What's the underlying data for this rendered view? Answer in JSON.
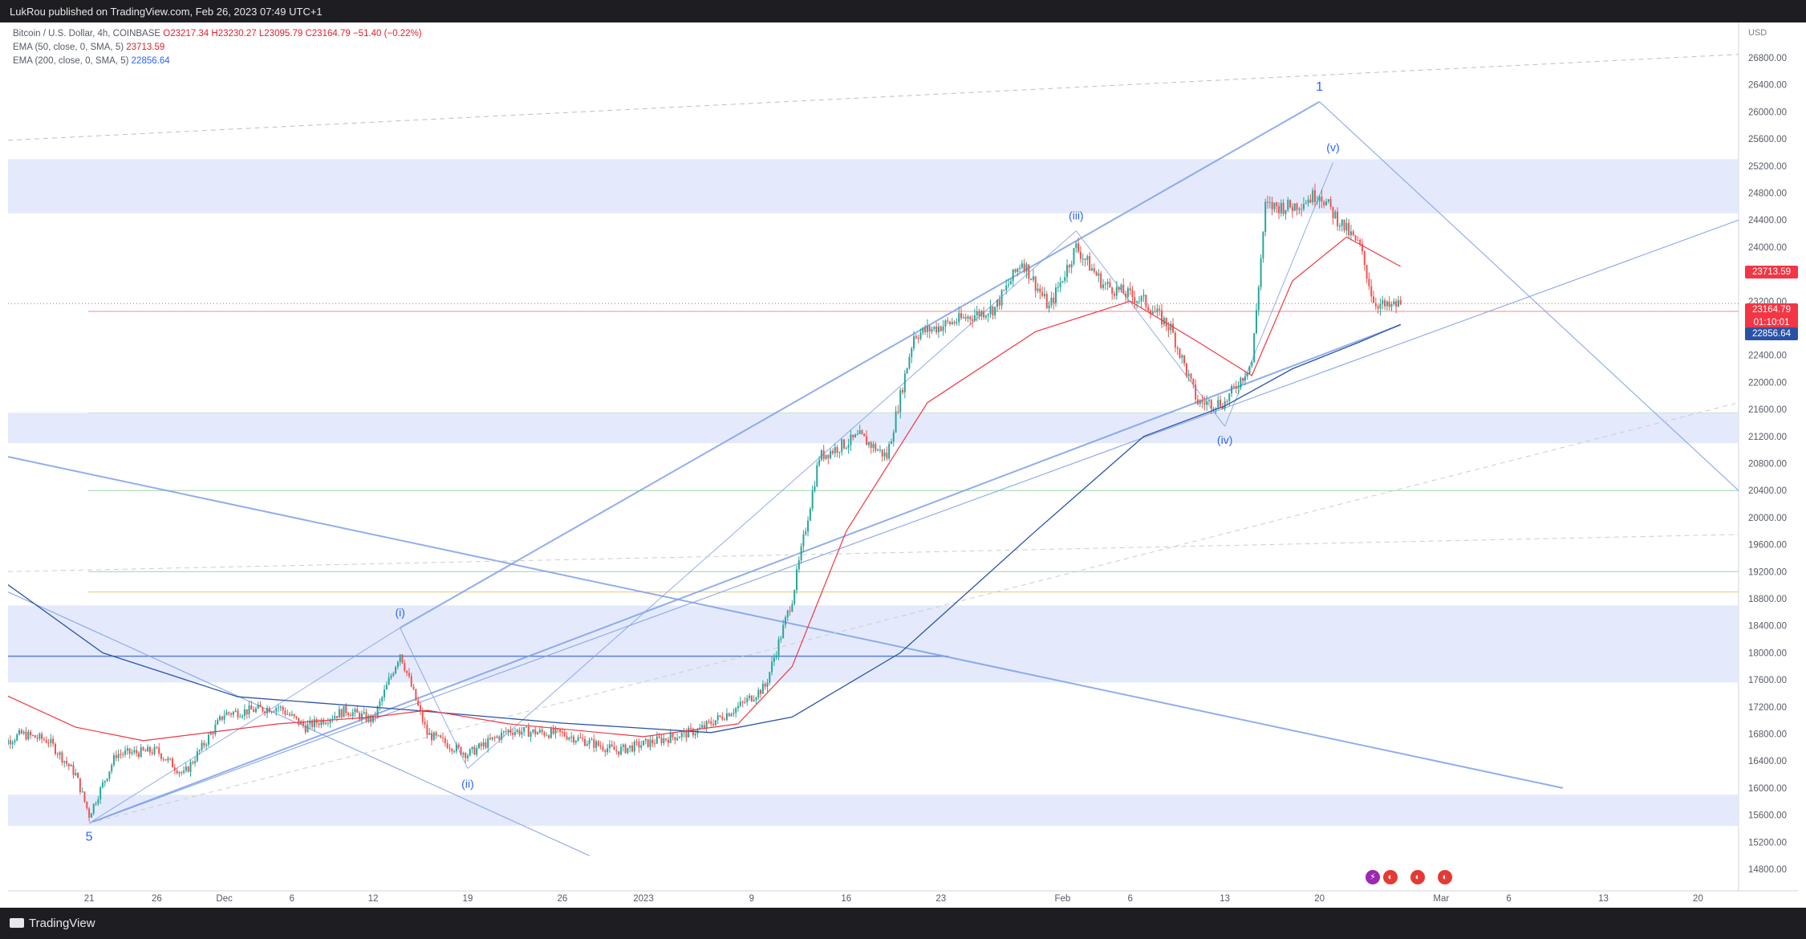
{
  "header": {
    "published_by": "LukRou published on TradingView.com, Feb 26, 2023 07:49 UTC+1"
  },
  "legend": {
    "symbol": "Bitcoin / U.S. Dollar, 4h, COINBASE",
    "open": "O23217.34",
    "high": "H23230.27",
    "low": "L23095.79",
    "close": "C23164.79",
    "change": "−51.40 (−0.22%)",
    "ema50_label": "EMA (50, close, 0, SMA, 5)",
    "ema50_value": "23713.59",
    "ema200_label": "EMA (200, close, 0, SMA, 5)",
    "ema200_value": "22856.64"
  },
  "axis": {
    "currency": "USD",
    "y_ticks": [
      "26800.00",
      "26400.00",
      "26000.00",
      "25600.00",
      "25200.00",
      "24800.00",
      "24400.00",
      "24000.00",
      "23600.00",
      "23200.00",
      "22800.00",
      "22400.00",
      "22000.00",
      "21600.00",
      "21200.00",
      "20800.00",
      "20400.00",
      "20000.00",
      "19600.00",
      "19200.00",
      "18800.00",
      "18400.00",
      "18000.00",
      "17600.00",
      "17200.00",
      "16800.00",
      "16400.00",
      "16000.00",
      "15600.00",
      "15200.00",
      "14800.00"
    ],
    "x_ticks": [
      "21",
      "26",
      "Dec",
      "6",
      "12",
      "19",
      "26",
      "2023",
      "9",
      "16",
      "23",
      "Feb",
      "6",
      "13",
      "20",
      "Mar",
      "6",
      "13",
      "20"
    ]
  },
  "price_tags": {
    "ema50": "23713.59",
    "last": "23164.79",
    "countdown": "01:10:01",
    "ema200": "22856.64"
  },
  "wave_labels": [
    "5",
    "(i)",
    "(ii)",
    "(iii)",
    "(iv)",
    "1",
    "(v)"
  ],
  "footer": {
    "brand": "TradingView"
  },
  "colors": {
    "up": "#26a69a",
    "down": "#ef5350",
    "ema50": "#f23645",
    "ema200": "#2a53a8",
    "zone": "#dfe6fb",
    "trendline": "#7f9fe8",
    "wave_label": "#2962ff"
  },
  "chart_data": {
    "type": "candlestick",
    "title": "Bitcoin / U.S. Dollar, 4h, COINBASE",
    "ylim": [
      14800,
      26800
    ],
    "xlim": [
      "2022-11-15",
      "2023-03-23"
    ],
    "support_resistance_zones": [
      [
        15440,
        15900
      ],
      [
        21100,
        21550
      ],
      [
        17560,
        18700
      ],
      [
        24500,
        25300
      ]
    ],
    "horizontal_levels": [
      17950,
      18900,
      19200,
      20400,
      21550,
      23050
    ],
    "wave_points": [
      {
        "label": "5",
        "date": "2022-11-21",
        "price": 15480
      },
      {
        "label": "(i)",
        "date": "2022-12-14",
        "price": 18370
      },
      {
        "label": "(ii)",
        "date": "2022-12-19",
        "price": 16290
      },
      {
        "label": "(iii)",
        "date": "2023-02-02",
        "price": 24240
      },
      {
        "label": "(iv)",
        "date": "2023-02-13",
        "price": 21350
      },
      {
        "label": "1",
        "date": "2023-02-20",
        "price": 26150
      },
      {
        "label": "(v)",
        "date": "2023-02-21",
        "price": 25250
      }
    ],
    "price_path": [
      {
        "date": "2022-11-14",
        "price": 16600
      },
      {
        "date": "2022-11-16",
        "price": 16800
      },
      {
        "date": "2022-11-18",
        "price": 16700
      },
      {
        "date": "2022-11-20",
        "price": 16200
      },
      {
        "date": "2022-11-21",
        "price": 15600
      },
      {
        "date": "2022-11-23",
        "price": 16500
      },
      {
        "date": "2022-11-26",
        "price": 16550
      },
      {
        "date": "2022-11-28",
        "price": 16200
      },
      {
        "date": "2022-12-01",
        "price": 17100
      },
      {
        "date": "2022-12-05",
        "price": 17200
      },
      {
        "date": "2022-12-07",
        "price": 16900
      },
      {
        "date": "2022-12-10",
        "price": 17150
      },
      {
        "date": "2022-12-12",
        "price": 17000
      },
      {
        "date": "2022-12-14",
        "price": 18000
      },
      {
        "date": "2022-12-16",
        "price": 16800
      },
      {
        "date": "2022-12-19",
        "price": 16500
      },
      {
        "date": "2022-12-22",
        "price": 16850
      },
      {
        "date": "2022-12-26",
        "price": 16800
      },
      {
        "date": "2022-12-30",
        "price": 16550
      },
      {
        "date": "2023-01-02",
        "price": 16700
      },
      {
        "date": "2023-01-05",
        "price": 16850
      },
      {
        "date": "2023-01-08",
        "price": 17200
      },
      {
        "date": "2023-01-10",
        "price": 17500
      },
      {
        "date": "2023-01-12",
        "price": 18800
      },
      {
        "date": "2023-01-14",
        "price": 20900
      },
      {
        "date": "2023-01-17",
        "price": 21200
      },
      {
        "date": "2023-01-19",
        "price": 20900
      },
      {
        "date": "2023-01-21",
        "price": 22700
      },
      {
        "date": "2023-01-24",
        "price": 22900
      },
      {
        "date": "2023-01-27",
        "price": 23100
      },
      {
        "date": "2023-01-29",
        "price": 23800
      },
      {
        "date": "2023-01-31",
        "price": 23100
      },
      {
        "date": "2023-02-02",
        "price": 24000
      },
      {
        "date": "2023-02-04",
        "price": 23450
      },
      {
        "date": "2023-02-07",
        "price": 23200
      },
      {
        "date": "2023-02-09",
        "price": 22800
      },
      {
        "date": "2023-02-11",
        "price": 21700
      },
      {
        "date": "2023-02-13",
        "price": 21700
      },
      {
        "date": "2023-02-15",
        "price": 22300
      },
      {
        "date": "2023-02-16",
        "price": 24600
      },
      {
        "date": "2023-02-18",
        "price": 24600
      },
      {
        "date": "2023-02-20",
        "price": 24800
      },
      {
        "date": "2023-02-21",
        "price": 24500
      },
      {
        "date": "2023-02-23",
        "price": 24000
      },
      {
        "date": "2023-02-24",
        "price": 23200
      },
      {
        "date": "2023-02-25",
        "price": 23100
      },
      {
        "date": "2023-02-26",
        "price": 23165
      }
    ],
    "ema50": [
      {
        "date": "2022-11-14",
        "price": 17450
      },
      {
        "date": "2022-11-20",
        "price": 16900
      },
      {
        "date": "2022-11-25",
        "price": 16700
      },
      {
        "date": "2022-12-05",
        "price": 16950
      },
      {
        "date": "2022-12-12",
        "price": 17050
      },
      {
        "date": "2022-12-16",
        "price": 17150
      },
      {
        "date": "2022-12-22",
        "price": 16950
      },
      {
        "date": "2023-01-01",
        "price": 16760
      },
      {
        "date": "2023-01-08",
        "price": 16950
      },
      {
        "date": "2023-01-12",
        "price": 17800
      },
      {
        "date": "2023-01-16",
        "price": 19800
      },
      {
        "date": "2023-01-22",
        "price": 21700
      },
      {
        "date": "2023-01-30",
        "price": 22750
      },
      {
        "date": "2023-02-06",
        "price": 23200
      },
      {
        "date": "2023-02-11",
        "price": 22600
      },
      {
        "date": "2023-02-15",
        "price": 22100
      },
      {
        "date": "2023-02-18",
        "price": 23500
      },
      {
        "date": "2023-02-22",
        "price": 24150
      },
      {
        "date": "2023-02-26",
        "price": 23713.59
      }
    ],
    "ema200": [
      {
        "date": "2022-11-14",
        "price": 19150
      },
      {
        "date": "2022-11-22",
        "price": 18000
      },
      {
        "date": "2022-12-02",
        "price": 17350
      },
      {
        "date": "2022-12-15",
        "price": 17150
      },
      {
        "date": "2022-12-26",
        "price": 16960
      },
      {
        "date": "2023-01-06",
        "price": 16820
      },
      {
        "date": "2023-01-12",
        "price": 17050
      },
      {
        "date": "2023-01-20",
        "price": 18000
      },
      {
        "date": "2023-01-30",
        "price": 19800
      },
      {
        "date": "2023-02-07",
        "price": 21200
      },
      {
        "date": "2023-02-13",
        "price": 21650
      },
      {
        "date": "2023-02-18",
        "price": 22200
      },
      {
        "date": "2023-02-23",
        "price": 22600
      },
      {
        "date": "2023-02-26",
        "price": 22856.64
      }
    ],
    "last_price": 23164.79,
    "ema50_last": 23713.59,
    "ema200_last": 22856.64
  }
}
